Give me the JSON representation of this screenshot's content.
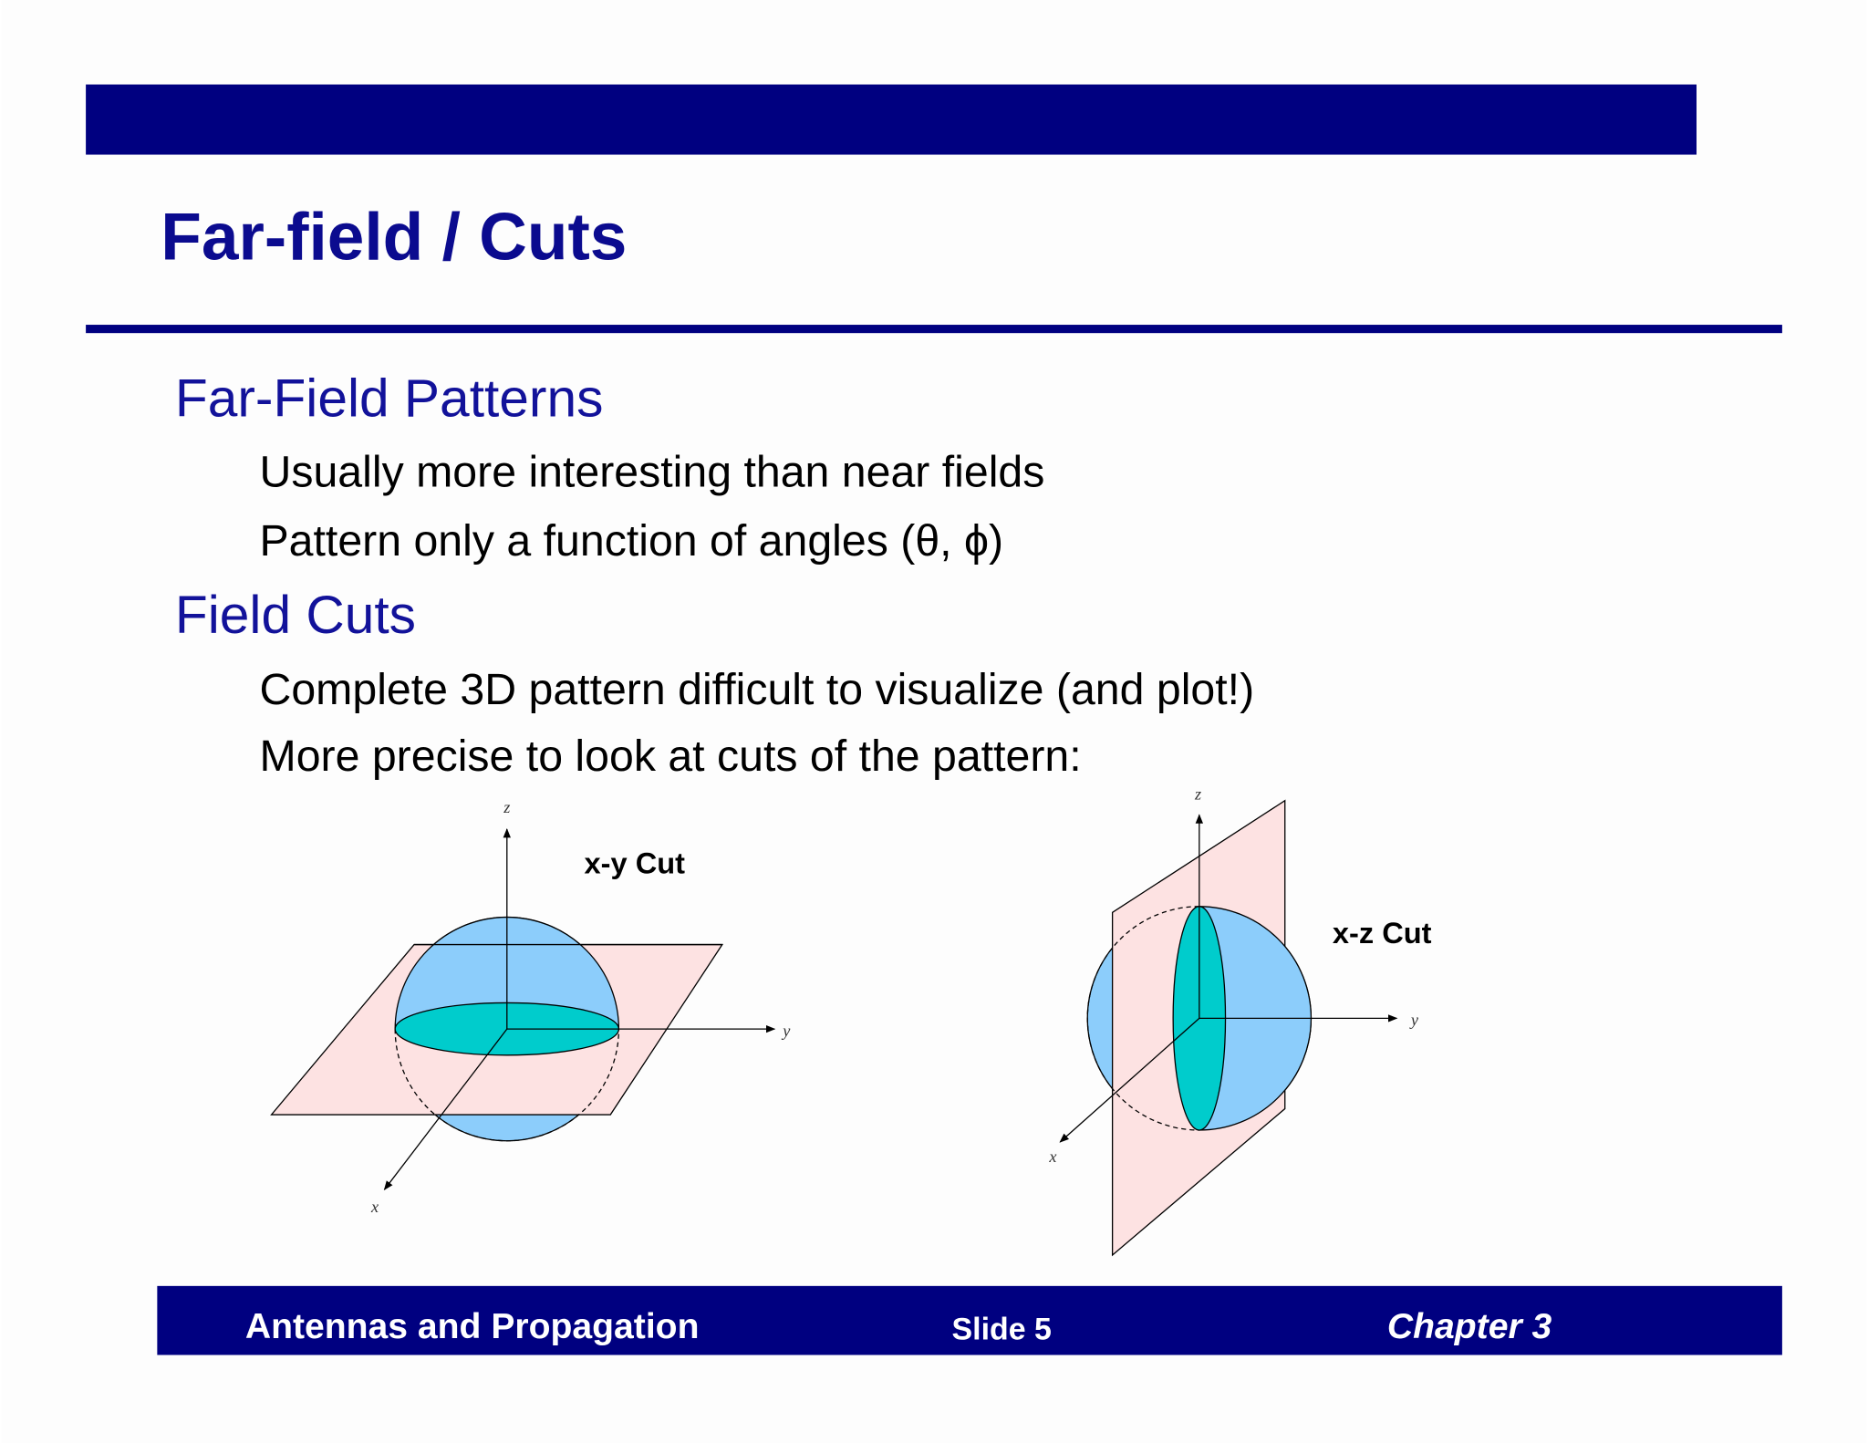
{
  "slide": {
    "title": "Far-field / Cuts",
    "sections": [
      {
        "heading": "Far-Field Patterns",
        "items": [
          "Usually more interesting than near fields",
          "Pattern only a function of angles (θ, ϕ)"
        ]
      },
      {
        "heading": "Field Cuts",
        "items": [
          "Complete 3D pattern difficult to visualize (and plot!)",
          "More precise to look at cuts of the pattern:"
        ]
      }
    ],
    "figures": [
      {
        "label": "x-y Cut",
        "axes": [
          "x",
          "y",
          "z"
        ]
      },
      {
        "label": "x-z Cut",
        "axes": [
          "x",
          "y",
          "z"
        ]
      }
    ],
    "footer": {
      "left": "Antennas and Propagation",
      "center": "Slide 5",
      "right": "Chapter 3"
    }
  }
}
